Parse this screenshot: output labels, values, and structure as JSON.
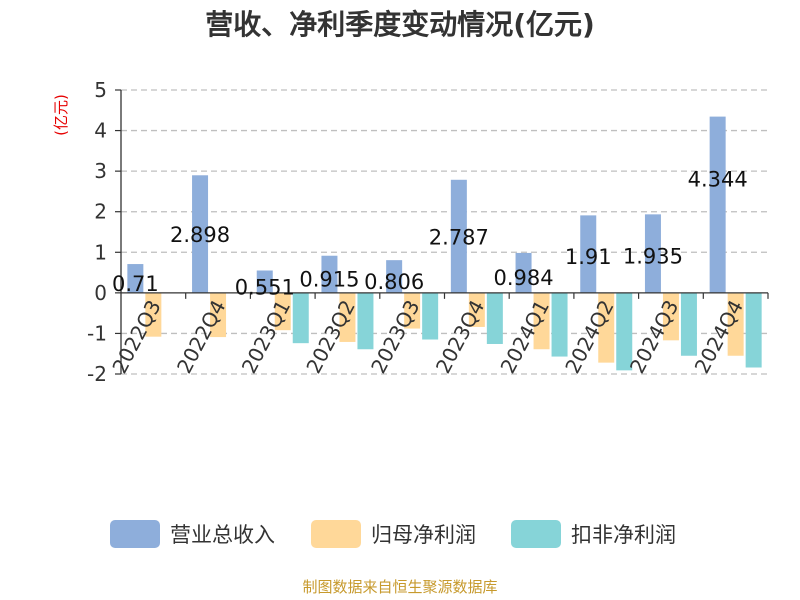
{
  "chart_data": {
    "type": "bar",
    "title": "营收、净利季度变动情况(亿元)",
    "ylabel": "(亿元)",
    "xlabel": "",
    "ylim": [
      -2,
      5
    ],
    "yticks": [
      5,
      4,
      3,
      2,
      1,
      0,
      -1,
      -2
    ],
    "grid": true,
    "legend_position": "bottom",
    "categories": [
      "2022Q3",
      "2022Q4",
      "2023Q1",
      "2023Q2",
      "2023Q3",
      "2023Q4",
      "2024Q1",
      "2024Q2",
      "2024Q3",
      "2024Q4"
    ],
    "series": [
      {
        "name": "营业总收入",
        "color": "#8eaedb",
        "values": [
          0.71,
          2.898,
          0.551,
          0.915,
          0.806,
          2.787,
          0.984,
          1.91,
          1.935,
          4.344
        ],
        "labels": [
          "0.71",
          "2.898",
          "0.551",
          "0.915",
          "0.806",
          "2.787",
          "0.984",
          "1.91",
          "1.935",
          "4.344"
        ]
      },
      {
        "name": "归母净利润",
        "color": "#ffd899",
        "values": [
          -1.08,
          -1.09,
          -0.92,
          -1.21,
          -0.88,
          -0.84,
          -1.39,
          -1.72,
          -1.17,
          -1.55
        ]
      },
      {
        "name": "扣非净利润",
        "color": "#86d4d8",
        "values": [
          null,
          null,
          -1.24,
          -1.39,
          -1.15,
          -1.26,
          -1.57,
          -1.91,
          -1.55,
          -1.84
        ]
      }
    ]
  },
  "source": "制图数据来自恒生聚源数据库"
}
